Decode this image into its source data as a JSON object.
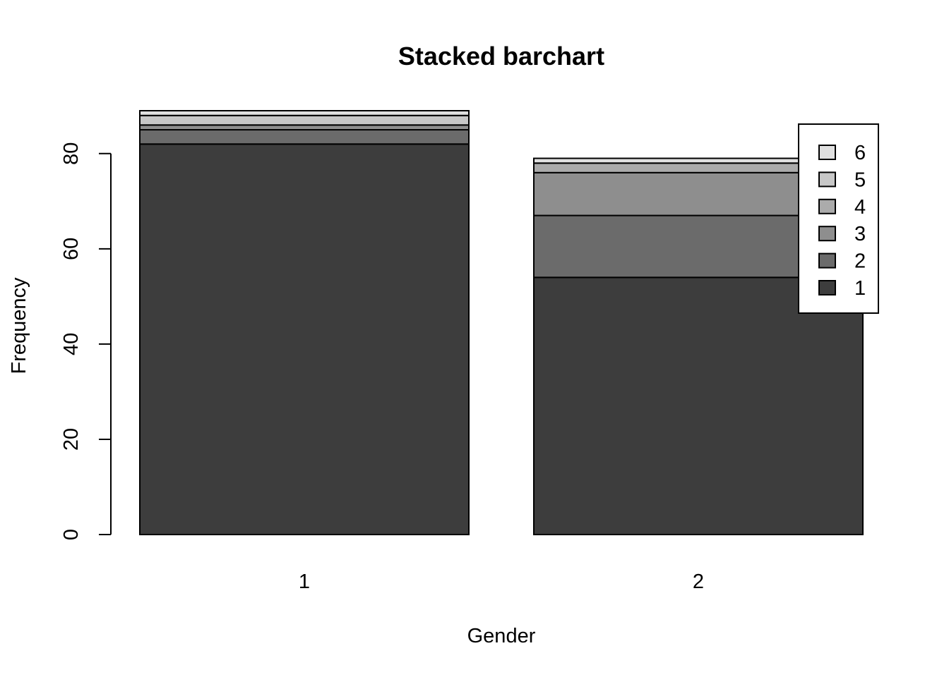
{
  "chart_data": {
    "type": "bar",
    "stacked": true,
    "title": "Stacked barchart",
    "xlabel": "Gender",
    "ylabel": "Frequency",
    "ylim": [
      0,
      89
    ],
    "yticks": [
      0,
      20,
      40,
      60,
      80
    ],
    "categories": [
      "1",
      "2"
    ],
    "series": [
      {
        "name": "1",
        "color": "#3d3d3d",
        "values": [
          82,
          54
        ]
      },
      {
        "name": "2",
        "color": "#6b6b6b",
        "values": [
          3,
          13
        ]
      },
      {
        "name": "3",
        "color": "#8e8e8e",
        "values": [
          1,
          9
        ]
      },
      {
        "name": "4",
        "color": "#ababab",
        "values": [
          0,
          2
        ]
      },
      {
        "name": "5",
        "color": "#c7c7c7",
        "values": [
          2,
          0
        ]
      },
      {
        "name": "6",
        "color": "#e0e0e0",
        "values": [
          1,
          1
        ]
      }
    ],
    "legend_position": "top-right",
    "legend_order": "reverse",
    "grid": false,
    "frame": false
  }
}
